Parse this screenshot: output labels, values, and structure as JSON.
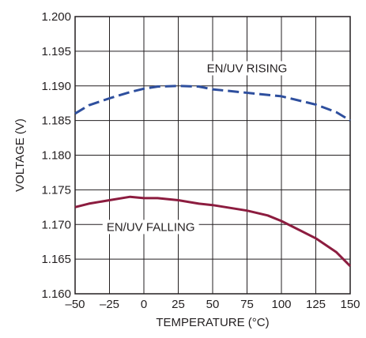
{
  "chart_data": {
    "type": "line",
    "title": "",
    "xlabel": "TEMPERATURE (°C)",
    "ylabel": "VOLTAGE (V)",
    "xlim": [
      -50,
      150
    ],
    "ylim": [
      1.16,
      1.2
    ],
    "x_ticks": [
      -50,
      -25,
      0,
      25,
      50,
      75,
      100,
      125,
      150
    ],
    "y_ticks": [
      1.16,
      1.165,
      1.17,
      1.175,
      1.18,
      1.185,
      1.19,
      1.195,
      1.2
    ],
    "x_tick_labels": [
      "–50",
      "–25",
      "0",
      "25",
      "50",
      "75",
      "100",
      "125",
      "150"
    ],
    "y_tick_labels": [
      "1.160",
      "1.165",
      "1.170",
      "1.175",
      "1.180",
      "1.185",
      "1.190",
      "1.195",
      "1.200"
    ],
    "grid": true,
    "legend": "none",
    "series": [
      {
        "name": "EN/UV RISING",
        "color": "#2e4f9e",
        "dash": "dashed",
        "x": [
          -50,
          -40,
          -25,
          -10,
          0,
          10,
          25,
          40,
          50,
          75,
          100,
          125,
          140,
          150
        ],
        "y": [
          1.186,
          1.1872,
          1.1882,
          1.1891,
          1.1896,
          1.1899,
          1.19,
          1.1899,
          1.1895,
          1.189,
          1.1885,
          1.1873,
          1.1862,
          1.185
        ]
      },
      {
        "name": "EN/UV FALLING",
        "color": "#8c1c3f",
        "dash": "solid",
        "x": [
          -50,
          -40,
          -25,
          -10,
          0,
          10,
          25,
          40,
          50,
          75,
          90,
          100,
          125,
          140,
          150
        ],
        "y": [
          1.1725,
          1.173,
          1.1735,
          1.174,
          1.1738,
          1.1738,
          1.1735,
          1.173,
          1.1728,
          1.172,
          1.1713,
          1.1705,
          1.168,
          1.166,
          1.164
        ]
      }
    ],
    "annotations": [
      {
        "text": "EN/UV RISING",
        "x": 75,
        "y": 1.1922
      },
      {
        "text": "EN/UV FALLING",
        "x": 5,
        "y": 1.1693
      }
    ]
  }
}
